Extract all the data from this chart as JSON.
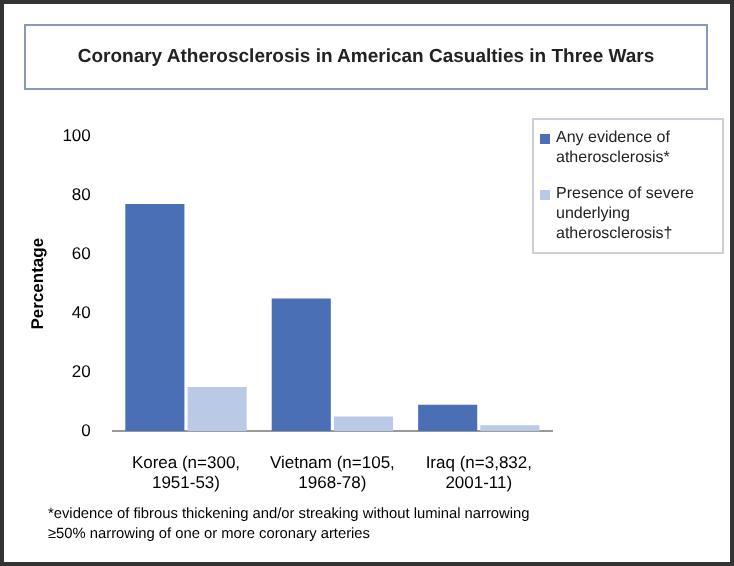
{
  "chart_data": {
    "type": "bar",
    "title": "Coronary Atherosclerosis in American Casualties in Three Wars",
    "ylabel": "Percentage",
    "categories": [
      "Korea (n=300, 1951-53)",
      "Vietnam (n=105, 1968-78)",
      "Iraq (n=3,832, 2001-11)"
    ],
    "series": [
      {
        "name": "Any evidence of atherosclerosis*",
        "color": "#4a6fb5",
        "values": [
          77,
          45,
          9
        ]
      },
      {
        "name": "Presence of severe underlying atherosclerosis†",
        "color": "#b9c9e6",
        "values": [
          15,
          5,
          2
        ]
      }
    ],
    "ylim": [
      0,
      100
    ],
    "yticks": [
      0,
      20,
      40,
      60,
      80,
      100
    ],
    "grid": false,
    "legend": "right",
    "annotations": [
      "*evidence of fibrous thickening and/or streaking without luminal narrowing",
      "≥50% narrowing of one or more coronary arteries"
    ]
  }
}
